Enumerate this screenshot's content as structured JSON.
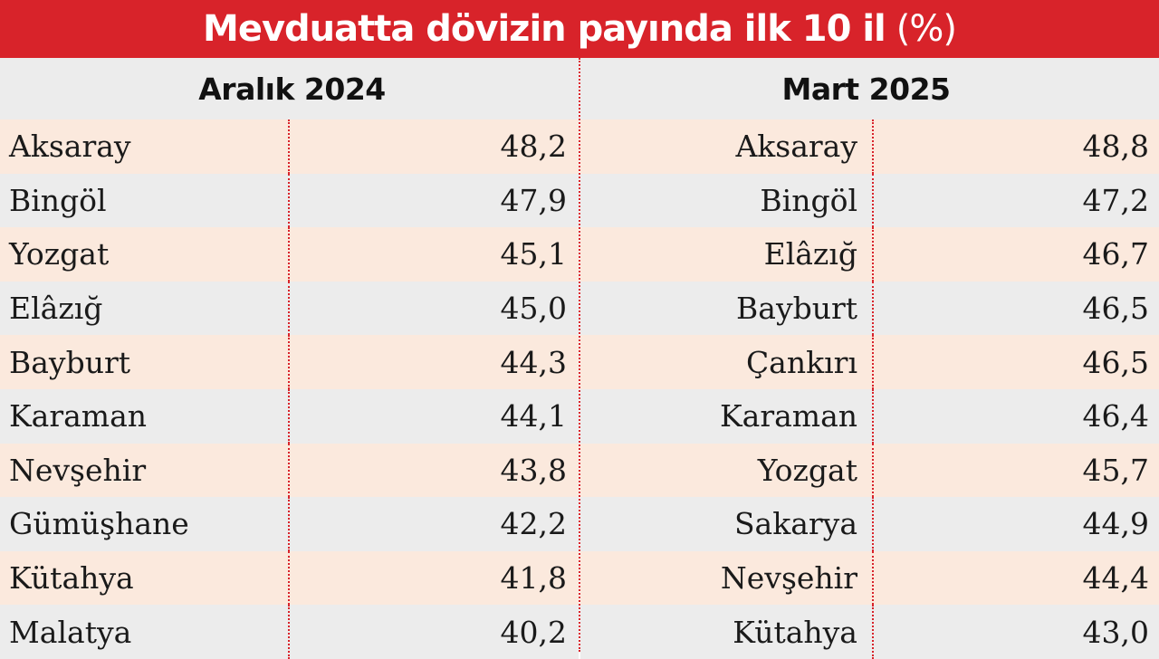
{
  "title": {
    "main": "Mevduatta dövizin payında ilk 10 il",
    "unit": "(%)"
  },
  "colors": {
    "title_bg": "#d8232a",
    "row_odd": "#fbe9dd",
    "row_even": "#ececec",
    "divider": "#d8232a"
  },
  "chart_data": {
    "type": "table",
    "title": "Mevduatta dövizin payında ilk 10 il (%)",
    "tables": [
      {
        "header": "Aralık 2024",
        "rows": [
          {
            "name": "Aksaray",
            "value": "48,2"
          },
          {
            "name": "Bingöl",
            "value": "47,9"
          },
          {
            "name": "Yozgat",
            "value": "45,1"
          },
          {
            "name": "Elâzığ",
            "value": "45,0"
          },
          {
            "name": "Bayburt",
            "value": "44,3"
          },
          {
            "name": "Karaman",
            "value": "44,1"
          },
          {
            "name": "Nevşehir",
            "value": "43,8"
          },
          {
            "name": "Gümüşhane",
            "value": "42,2"
          },
          {
            "name": "Kütahya",
            "value": "41,8"
          },
          {
            "name": "Malatya",
            "value": "40,2"
          }
        ]
      },
      {
        "header": "Mart 2025",
        "rows": [
          {
            "name": "Aksaray",
            "value": "48,8"
          },
          {
            "name": "Bingöl",
            "value": "47,2"
          },
          {
            "name": "Elâzığ",
            "value": "46,7"
          },
          {
            "name": "Bayburt",
            "value": "46,5"
          },
          {
            "name": "Çankırı",
            "value": "46,5"
          },
          {
            "name": "Karaman",
            "value": "46,4"
          },
          {
            "name": "Yozgat",
            "value": "45,7"
          },
          {
            "name": "Sakarya",
            "value": "44,9"
          },
          {
            "name": "Nevşehir",
            "value": "44,4"
          },
          {
            "name": "Kütahya",
            "value": "43,0"
          }
        ]
      }
    ]
  }
}
